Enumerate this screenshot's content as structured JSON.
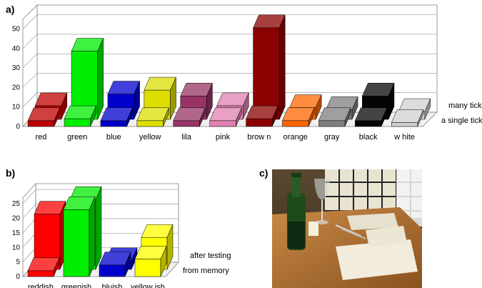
{
  "chart_data": [
    {
      "panel_label": "a)",
      "type": "bar",
      "layout": "3d-two-row",
      "categories": [
        "red",
        "green",
        "blue",
        "yellow",
        "lila",
        "pink",
        "brow n",
        "orange",
        "gray",
        "black",
        "w hite"
      ],
      "colors": [
        "#c00000",
        "#00ee00",
        "#0000cc",
        "#dddd00",
        "#993366",
        "#e080b0",
        "#8b0000",
        "#ff6600",
        "#7f7f7f",
        "#000000",
        "#d0d0d0"
      ],
      "yticks": [
        "0",
        "10",
        "20",
        "30",
        "40",
        "50"
      ],
      "ylim": [
        0,
        55
      ],
      "series": [
        {
          "name": "a single tick",
          "values": [
            3,
            4,
            3,
            3,
            3,
            3,
            4,
            3,
            3,
            3,
            2
          ]
        },
        {
          "name": "many ticks",
          "values": [
            7,
            35,
            13,
            15,
            12,
            7,
            47,
            6,
            5,
            12,
            4
          ]
        }
      ]
    },
    {
      "panel_label": "b)",
      "type": "bar",
      "layout": "3d-two-row",
      "categories": [
        "reddish",
        "greenish",
        "bluish",
        "yellow ish"
      ],
      "colors": [
        "#ff0000",
        "#00ee00",
        "#0000cc",
        "#ffff00"
      ],
      "yticks": [
        "0",
        "5",
        "10",
        "15",
        "20",
        "25"
      ],
      "ylim": [
        0,
        27
      ],
      "series": [
        {
          "name": "from memory",
          "values": [
            2,
            23,
            4,
            6
          ]
        },
        {
          "name": "after testing",
          "values": [
            19,
            24,
            3,
            11
          ]
        }
      ]
    }
  ],
  "photo": {
    "panel_label": "c)"
  }
}
